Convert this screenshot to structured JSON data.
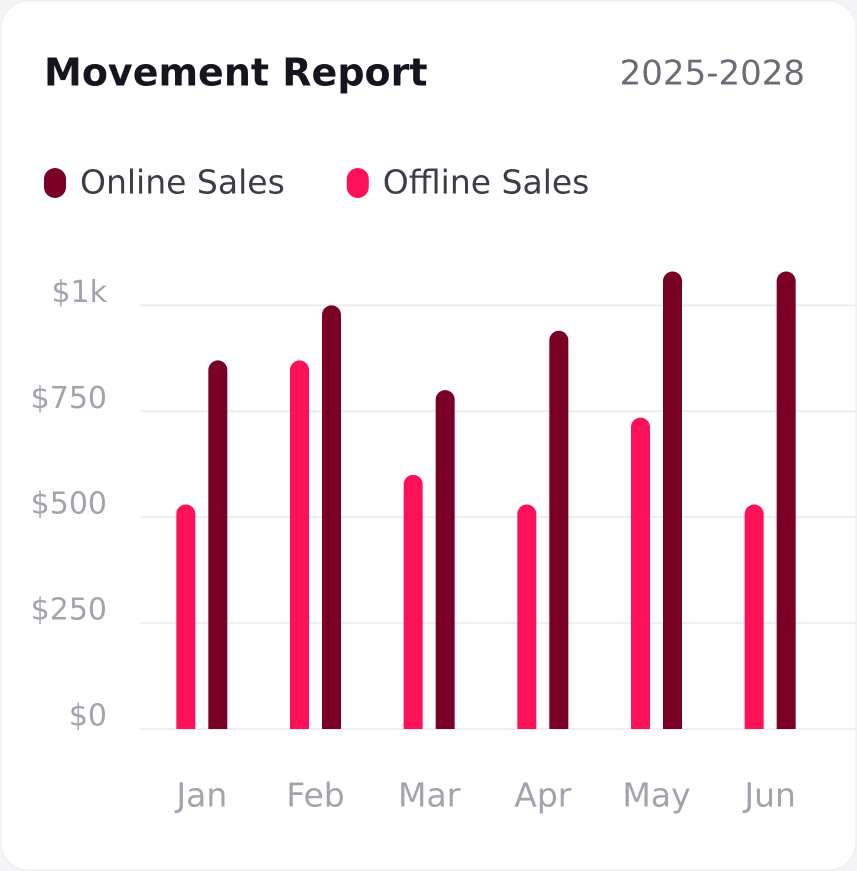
{
  "chart_data": {
    "type": "bar",
    "title": "Movement Report",
    "subtitle": "2025-2028",
    "categories": [
      "Jan",
      "Feb",
      "Mar",
      "Apr",
      "May",
      "Jun"
    ],
    "series": [
      {
        "name": "Online Sales",
        "color": "#7a0026",
        "values": [
          870,
          1000,
          800,
          940,
          1080,
          1080
        ]
      },
      {
        "name": "Offline Sales",
        "color": "#ff1159",
        "values": [
          530,
          870,
          600,
          530,
          735,
          530
        ]
      }
    ],
    "ylim": [
      0,
      1100
    ],
    "yticks": [
      {
        "value": 0,
        "label": "$0"
      },
      {
        "value": 250,
        "label": "$250"
      },
      {
        "value": 500,
        "label": "$500"
      },
      {
        "value": 750,
        "label": "$750"
      },
      {
        "value": 1000,
        "label": "$1k"
      }
    ],
    "grid": true
  }
}
